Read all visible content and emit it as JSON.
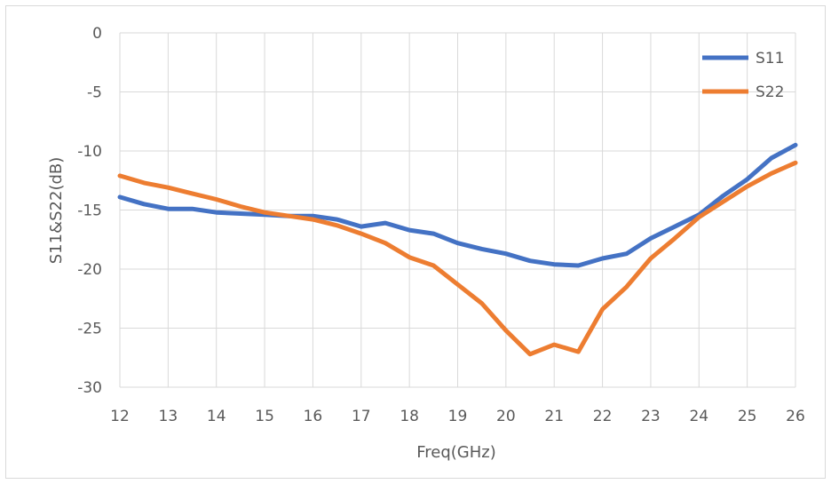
{
  "chart_data": {
    "type": "line",
    "title": "",
    "xlabel": "Freq(GHz)",
    "ylabel": "S11&S22(dB)",
    "xlim": [
      12,
      26
    ],
    "ylim": [
      -30,
      0
    ],
    "xticks": [
      12,
      13,
      14,
      15,
      16,
      17,
      18,
      19,
      20,
      21,
      22,
      23,
      24,
      25,
      26
    ],
    "yticks": [
      0,
      -5,
      -10,
      -15,
      -20,
      -25,
      -30
    ],
    "grid": true,
    "legend_position": "top-right",
    "series": [
      {
        "name": "S11",
        "color": "#4472C4",
        "x": [
          12,
          12.5,
          13,
          13.5,
          14,
          14.5,
          15,
          15.5,
          16,
          16.5,
          17,
          17.5,
          18,
          18.5,
          19,
          19.5,
          20,
          20.5,
          21,
          21.5,
          22,
          22.5,
          23,
          23.5,
          24,
          24.5,
          25,
          25.5,
          26
        ],
        "y": [
          -13.9,
          -14.5,
          -14.9,
          -14.9,
          -15.2,
          -15.3,
          -15.4,
          -15.5,
          -15.5,
          -15.8,
          -16.4,
          -16.1,
          -16.7,
          -17.0,
          -17.8,
          -18.3,
          -18.7,
          -19.3,
          -19.6,
          -19.7,
          -19.1,
          -18.7,
          -17.4,
          -16.4,
          -15.4,
          -13.8,
          -12.4,
          -10.6,
          -9.5
        ]
      },
      {
        "name": "S22",
        "color": "#ED7D31",
        "x": [
          12,
          12.5,
          13,
          13.5,
          14,
          14.5,
          15,
          15.5,
          16,
          16.5,
          17,
          17.5,
          18,
          18.5,
          19,
          19.5,
          20,
          20.5,
          21,
          21.5,
          22,
          22.5,
          23,
          23.5,
          24,
          24.5,
          25,
          25.5,
          26
        ],
        "y": [
          -12.1,
          -12.7,
          -13.1,
          -13.6,
          -14.1,
          -14.7,
          -15.2,
          -15.5,
          -15.8,
          -16.3,
          -17.0,
          -17.8,
          -19.0,
          -19.7,
          -21.3,
          -22.9,
          -25.2,
          -27.2,
          -26.4,
          -27.0,
          -23.4,
          -21.5,
          -19.1,
          -17.4,
          -15.6,
          -14.3,
          -13.0,
          -11.9,
          -11.0
        ]
      }
    ]
  }
}
